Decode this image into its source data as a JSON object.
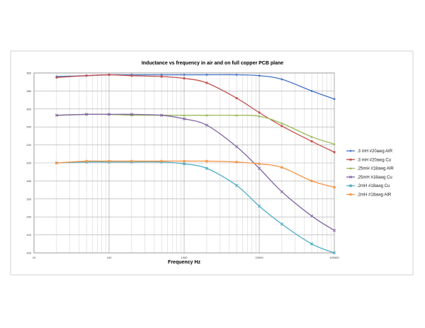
{
  "chart_data": {
    "type": "line",
    "title": "Inductance vs frequency in air and on full copper PCB plane",
    "xlabel": "Frequency Hz",
    "ylabel": "",
    "x_scale": "log",
    "xlim": [
      10,
      100000
    ],
    "ylim": [
      100,
      300
    ],
    "grid": true,
    "legend_position": "right",
    "x_tick_labels": [
      "10",
      "100",
      "1000",
      "10000",
      "100000"
    ],
    "y_tick_labels": [
      "100",
      "120",
      "140",
      "160",
      "180",
      "200",
      "220",
      "240",
      "260",
      "280",
      "300"
    ],
    "x": [
      20,
      50,
      100,
      200,
      500,
      1000,
      2000,
      5000,
      10000,
      20000,
      50000,
      100000
    ],
    "series": [
      {
        "name": ".3 mH #20awg AIR",
        "color": "#4472C4",
        "marker": "diamond",
        "values": [
          296,
          297,
          298,
          298,
          298,
          298,
          298,
          298,
          297,
          293,
          280,
          271
        ]
      },
      {
        "name": ".3 mH #20awg Cu",
        "color": "#C0504D",
        "marker": "square",
        "values": [
          295,
          297,
          298,
          297,
          296,
          294,
          289,
          272,
          256,
          241,
          224,
          212
        ]
      },
      {
        "name": ".25mH #18awg AIR",
        "color": "#9BBB59",
        "marker": "triangle",
        "values": [
          253,
          254,
          254,
          253,
          253,
          253,
          253,
          253,
          252,
          244,
          229,
          221
        ]
      },
      {
        "name": ".25mH #18awg Cu",
        "color": "#8064A2",
        "marker": "x",
        "values": [
          253,
          254,
          254,
          254,
          253,
          249,
          242,
          218,
          194,
          168,
          141,
          125
        ]
      },
      {
        "name": ".2mH #18awg Cu",
        "color": "#4BACC6",
        "marker": "star",
        "values": [
          200,
          201,
          201,
          201,
          201,
          199,
          194,
          175,
          152,
          132,
          110,
          100
        ]
      },
      {
        "name": ".2mH #18awg AIR",
        "color": "#F79646",
        "marker": "circle",
        "values": [
          200,
          202,
          202,
          202,
          202,
          202,
          202,
          201,
          199,
          195,
          180,
          173
        ]
      }
    ]
  }
}
